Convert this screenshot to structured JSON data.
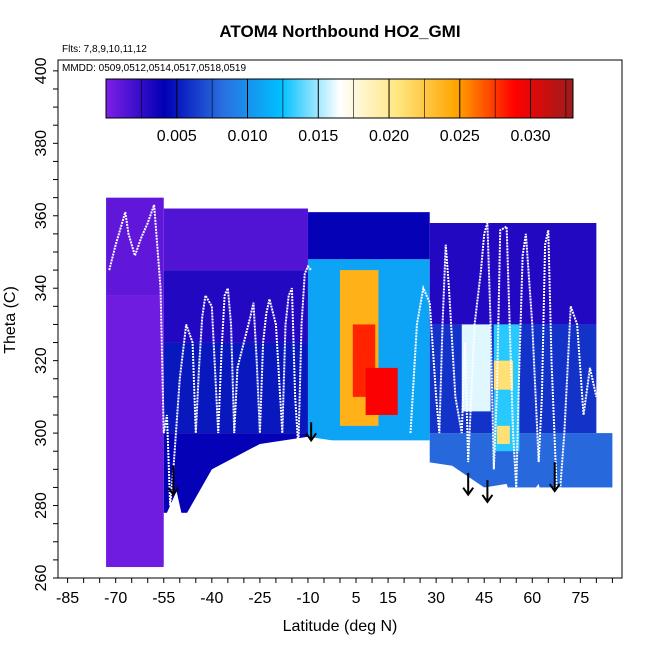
{
  "chart_data": {
    "type": "heatmap",
    "title": "ATOM4 Northbound HO2_GMI",
    "annotations": [
      "Flts: 7,8,9,10,11,12",
      "MMDD: 0509,0512,0514,0517,0518,0519"
    ],
    "xlabel": "Latitude (deg N)",
    "ylabel": "Theta (C)",
    "xlim": [
      -88,
      88
    ],
    "ylim": [
      260,
      403
    ],
    "x_tick_labels": [
      "-85",
      "-70",
      "-55",
      "-40",
      "-25",
      "-10",
      "5",
      "15",
      "30",
      "45",
      "60",
      "75"
    ],
    "y_tick_labels": [
      "260",
      "280",
      "300",
      "320",
      "340",
      "360",
      "380",
      "400"
    ],
    "colorbar": {
      "range": [
        0,
        0.033
      ],
      "tick_labels": [
        "0.005",
        "0.010",
        "0.015",
        "0.020",
        "0.025",
        "0.030"
      ],
      "colors": [
        "#7f1fe6",
        "#0000b4",
        "#2a6fe0",
        "#00bfff",
        "#ffffff",
        "#ffe680",
        "#ffa500",
        "#ff0000",
        "#9b1c1c"
      ]
    },
    "surface_boundary": [
      [
        -85,
        263
      ],
      [
        -55,
        263
      ],
      [
        -54,
        278
      ],
      [
        -51,
        284
      ],
      [
        -49,
        276
      ],
      [
        -40,
        290
      ],
      [
        -25,
        297
      ],
      [
        -10,
        299
      ],
      [
        5,
        297
      ],
      [
        20,
        293
      ],
      [
        35,
        291
      ],
      [
        45,
        285
      ],
      [
        52,
        286
      ],
      [
        55,
        278
      ],
      [
        62,
        286
      ],
      [
        65,
        275
      ],
      [
        70,
        266
      ],
      [
        78,
        270
      ],
      [
        85,
        278
      ]
    ],
    "cells": [
      {
        "lat": [
          -73,
          -55
        ],
        "theta": [
          263,
          338
        ],
        "value": 0.0005
      },
      {
        "lat": [
          -73,
          -55
        ],
        "theta": [
          338,
          365
        ],
        "value": 0.001
      },
      {
        "lat": [
          -55,
          -10
        ],
        "theta": [
          278,
          300
        ],
        "value": 0.004
      },
      {
        "lat": [
          -55,
          -10
        ],
        "theta": [
          300,
          325
        ],
        "value": 0.005
      },
      {
        "lat": [
          -55,
          -10
        ],
        "theta": [
          325,
          345
        ],
        "value": 0.003
      },
      {
        "lat": [
          -55,
          -10
        ],
        "theta": [
          345,
          362
        ],
        "value": 0.0015
      },
      {
        "lat": [
          -10,
          28
        ],
        "theta": [
          298,
          348
        ],
        "value": 0.011
      },
      {
        "lat": [
          -10,
          28
        ],
        "theta": [
          348,
          361
        ],
        "value": 0.004
      },
      {
        "lat": [
          28,
          85
        ],
        "theta": [
          285,
          300
        ],
        "value": 0.008
      },
      {
        "lat": [
          28,
          80
        ],
        "theta": [
          300,
          330
        ],
        "value": 0.006
      },
      {
        "lat": [
          28,
          80
        ],
        "theta": [
          330,
          358
        ],
        "value": 0.003
      },
      {
        "lat": [
          0,
          12
        ],
        "theta": [
          302,
          345
        ],
        "value": 0.024
      },
      {
        "lat": [
          4,
          11
        ],
        "theta": [
          310,
          330
        ],
        "value": 0.028
      },
      {
        "lat": [
          8,
          18
        ],
        "theta": [
          305,
          318
        ],
        "value": 0.029
      },
      {
        "lat": [
          38,
          47
        ],
        "theta": [
          306,
          330
        ],
        "value": 0.016
      },
      {
        "lat": [
          48,
          56
        ],
        "theta": [
          295,
          330
        ],
        "value": 0.013
      },
      {
        "lat": [
          48,
          54
        ],
        "theta": [
          312,
          320
        ],
        "value": 0.021
      },
      {
        "lat": [
          49,
          53
        ],
        "theta": [
          297,
          302
        ],
        "value": 0.021
      }
    ],
    "arrows_lat": [
      -52,
      -9,
      40,
      46,
      67
    ],
    "arrows_theta": [
      [
        291,
        283
      ],
      [
        303,
        298
      ],
      [
        289,
        283
      ],
      [
        287,
        281
      ],
      [
        292,
        284
      ]
    ],
    "flight_tracks": [
      {
        "lat": [
          -72,
          -70,
          -68,
          -67,
          -66,
          -64,
          -62,
          -60,
          -58,
          -56,
          -55,
          -54,
          -53,
          -52,
          -50,
          -48,
          -46,
          -45,
          -44,
          -43,
          -42,
          -40,
          -38,
          -37,
          -36,
          -35,
          -34,
          -33,
          -32,
          -30,
          -28,
          -27,
          -26,
          -25,
          -24,
          -23,
          -22,
          -20,
          -18,
          -17,
          -16,
          -15,
          -14,
          -13,
          -12,
          -11,
          -10,
          -9
        ],
        "theta": [
          345,
          352,
          358,
          361,
          355,
          349,
          354,
          358,
          363,
          340,
          300,
          305,
          280,
          290,
          315,
          330,
          325,
          300,
          318,
          332,
          338,
          335,
          300,
          322,
          338,
          340,
          330,
          300,
          318,
          325,
          332,
          336,
          320,
          300,
          325,
          333,
          337,
          330,
          300,
          330,
          338,
          340,
          310,
          296,
          330,
          344,
          346,
          345
        ]
      },
      {
        "lat": [
          22,
          24,
          26,
          28,
          30,
          31,
          32,
          33,
          34,
          36,
          38,
          39,
          40,
          42,
          44,
          45,
          46,
          47,
          48,
          49,
          50,
          52,
          54,
          55,
          56,
          57,
          58,
          60,
          62,
          63,
          64,
          65,
          66,
          68,
          70,
          72,
          74,
          76,
          78,
          80
        ],
        "theta": [
          300,
          330,
          340,
          336,
          310,
          300,
          330,
          352,
          340,
          310,
          300,
          325,
          292,
          330,
          345,
          355,
          358,
          330,
          290,
          312,
          356,
          357,
          300,
          285,
          320,
          349,
          355,
          330,
          292,
          310,
          352,
          356,
          320,
          276,
          300,
          335,
          330,
          305,
          318,
          310
        ]
      }
    ]
  }
}
